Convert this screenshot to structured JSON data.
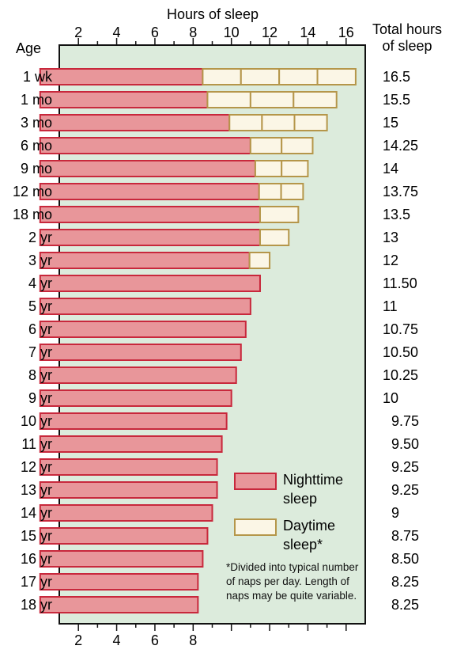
{
  "chart_data": {
    "type": "bar",
    "orientation": "horizontal",
    "stacked": true,
    "title": "Hours of sleep",
    "ylabel": "Age",
    "right_column_label": "Total hours of sleep",
    "xlim": [
      1,
      17
    ],
    "x_ticks": [
      2,
      4,
      6,
      8,
      10,
      12,
      14,
      16
    ],
    "x_ticks_bottom": [
      2,
      4,
      6,
      8
    ],
    "grid": false,
    "categories": [
      "1 wk",
      "1 mo",
      "3 mo",
      "6 mo",
      "9 mo",
      "12 mo",
      "18 mo",
      "2 yr",
      "3 yr",
      "4 yr",
      "5 yr",
      "6 yr",
      "7 yr",
      "8 yr",
      "9 yr",
      "10 yr",
      "11 yr",
      "12 yr",
      "13 yr",
      "14 yr",
      "15 yr",
      "16 yr",
      "17 yr",
      "18 yr"
    ],
    "total_labels": [
      "16.5",
      "15.5",
      "15",
      "14.25",
      "14",
      "13.75",
      "13.5",
      "13",
      "12",
      "11.50",
      "11",
      "10.75",
      "10.50",
      "10.25",
      "10",
      "9.75",
      "9.50",
      "9.25",
      "9.25",
      "9",
      "8.75",
      "8.50",
      "8.25",
      "8.25"
    ],
    "series": [
      {
        "name": "Nighttime sleep",
        "color": "#e8969a",
        "edge": "#c8283c",
        "values": [
          8.5,
          8.75,
          9.9,
          11,
          11.25,
          11.45,
          11.5,
          11.5,
          10.95,
          11.5,
          11,
          10.75,
          10.5,
          10.25,
          10,
          9.75,
          9.5,
          9.25,
          9.25,
          9,
          8.75,
          8.5,
          8.25,
          8.25
        ]
      },
      {
        "name": "Daytime sleep*",
        "color": "#fbf6e6",
        "edge": "#b5964a",
        "values": [
          8,
          6.75,
          5.1,
          3.25,
          2.75,
          2.3,
          2,
          1.5,
          1.05,
          0,
          0,
          0,
          0,
          0,
          0,
          0,
          0,
          0,
          0,
          0,
          0,
          0,
          0,
          0
        ],
        "naps": [
          4,
          3,
          3,
          2,
          2,
          2,
          1,
          1,
          1,
          0,
          0,
          0,
          0,
          0,
          0,
          0,
          0,
          0,
          0,
          0,
          0,
          0,
          0,
          0
        ]
      }
    ],
    "plot_background": "#dcebdc",
    "footnote": "*Divided into typical number of naps per day. Length of naps may be quite variable."
  }
}
